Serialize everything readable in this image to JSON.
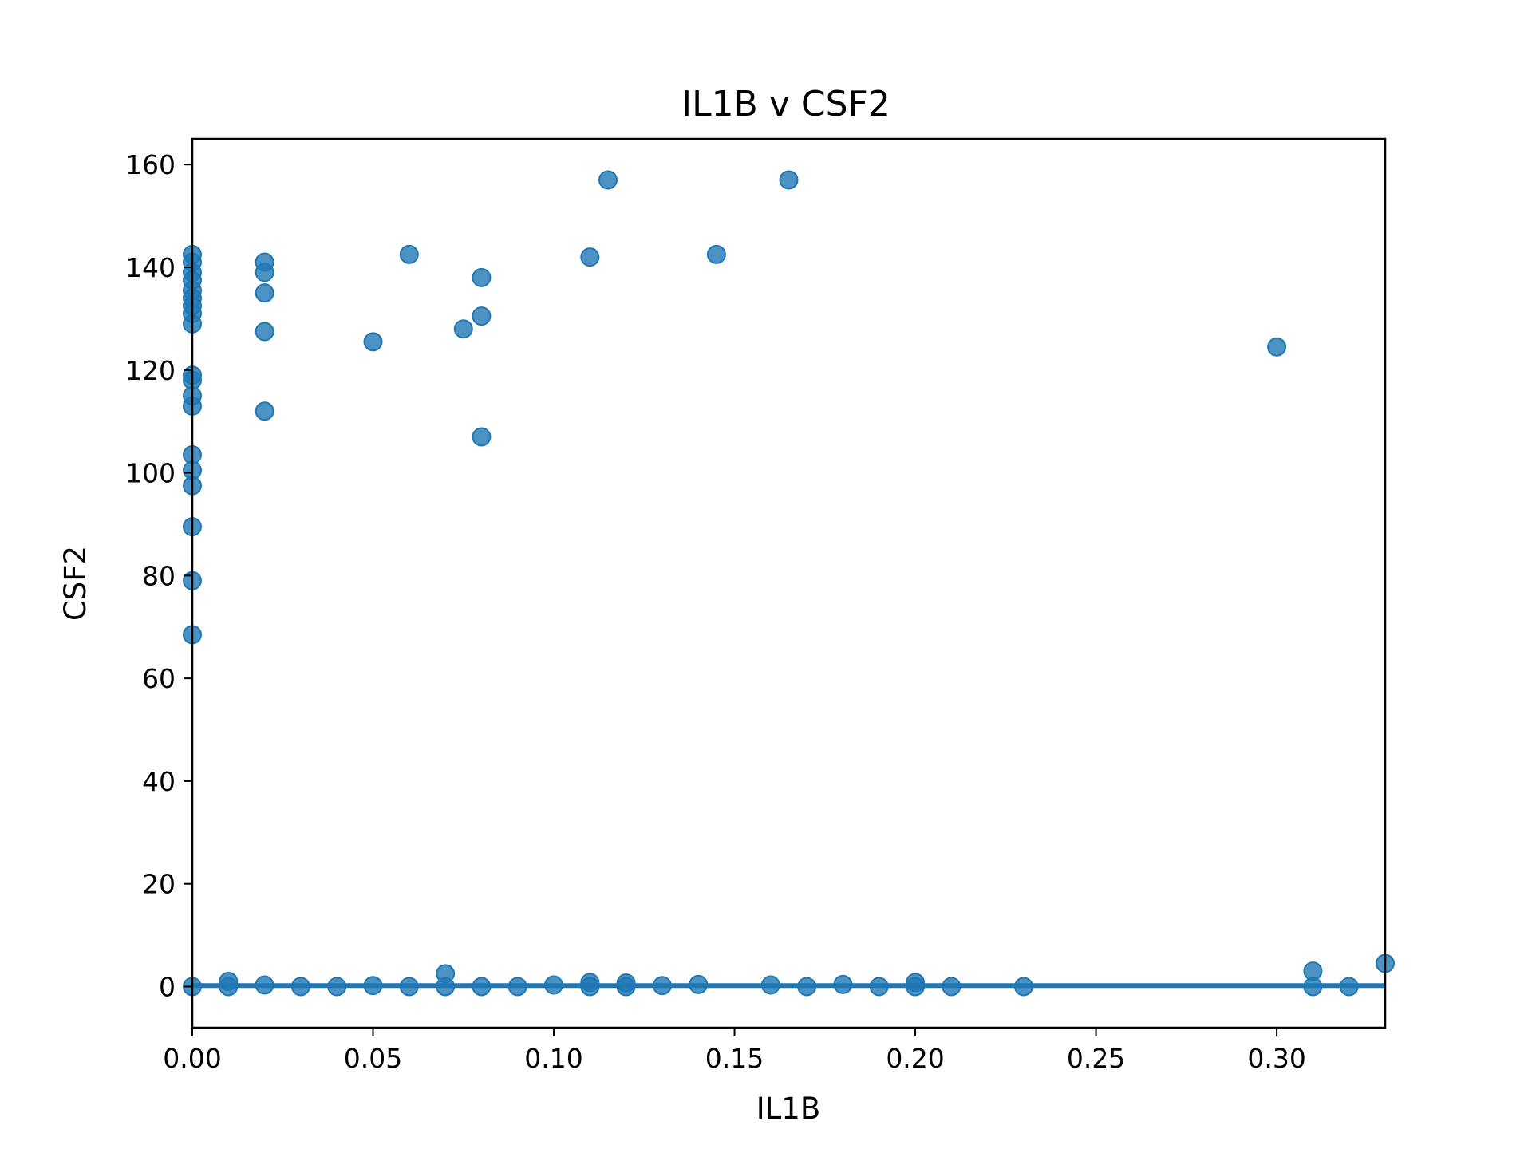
{
  "chart_data": {
    "type": "scatter",
    "title": "IL1B v CSF2",
    "xlabel": "IL1B",
    "ylabel": "CSF2",
    "xlim": [
      0.0,
      0.33
    ],
    "ylim": [
      -8,
      165
    ],
    "xticks": [
      0.0,
      0.05,
      0.1,
      0.15,
      0.2,
      0.25,
      0.3
    ],
    "xtick_labels": [
      "0.00",
      "0.05",
      "0.10",
      "0.15",
      "0.20",
      "0.25",
      "0.30"
    ],
    "yticks": [
      0,
      20,
      40,
      60,
      80,
      100,
      120,
      140,
      160
    ],
    "ytick_labels": [
      "0",
      "20",
      "40",
      "60",
      "80",
      "100",
      "120",
      "140",
      "160"
    ],
    "grid": false,
    "point_color": "#1f77b4",
    "regression_line": {
      "slope": 0,
      "intercept": 0.2,
      "color": "#1f77b4"
    },
    "points": [
      {
        "x": 0.0,
        "y": 142.5
      },
      {
        "x": 0.0,
        "y": 141.0
      },
      {
        "x": 0.0,
        "y": 139.0
      },
      {
        "x": 0.0,
        "y": 137.5
      },
      {
        "x": 0.0,
        "y": 135.5
      },
      {
        "x": 0.0,
        "y": 134.0
      },
      {
        "x": 0.0,
        "y": 132.5
      },
      {
        "x": 0.0,
        "y": 131.0
      },
      {
        "x": 0.0,
        "y": 129.0
      },
      {
        "x": 0.0,
        "y": 119.0
      },
      {
        "x": 0.0,
        "y": 118.0
      },
      {
        "x": 0.0,
        "y": 115.0
      },
      {
        "x": 0.0,
        "y": 113.0
      },
      {
        "x": 0.0,
        "y": 103.5
      },
      {
        "x": 0.0,
        "y": 100.5
      },
      {
        "x": 0.0,
        "y": 97.5
      },
      {
        "x": 0.0,
        "y": 89.5
      },
      {
        "x": 0.0,
        "y": 79.0
      },
      {
        "x": 0.0,
        "y": 68.5
      },
      {
        "x": 0.0,
        "y": 0.0
      },
      {
        "x": 0.01,
        "y": 1.0
      },
      {
        "x": 0.01,
        "y": 0.0
      },
      {
        "x": 0.02,
        "y": 141.0
      },
      {
        "x": 0.02,
        "y": 139.0
      },
      {
        "x": 0.02,
        "y": 135.0
      },
      {
        "x": 0.02,
        "y": 127.5
      },
      {
        "x": 0.02,
        "y": 112.0
      },
      {
        "x": 0.02,
        "y": 0.3
      },
      {
        "x": 0.03,
        "y": 0.0
      },
      {
        "x": 0.04,
        "y": 0.0
      },
      {
        "x": 0.05,
        "y": 125.5
      },
      {
        "x": 0.05,
        "y": 0.2
      },
      {
        "x": 0.06,
        "y": 142.5
      },
      {
        "x": 0.06,
        "y": 0.0
      },
      {
        "x": 0.07,
        "y": 2.5
      },
      {
        "x": 0.07,
        "y": 0.0
      },
      {
        "x": 0.075,
        "y": 128.0
      },
      {
        "x": 0.08,
        "y": 138.0
      },
      {
        "x": 0.08,
        "y": 130.5
      },
      {
        "x": 0.08,
        "y": 107.0
      },
      {
        "x": 0.08,
        "y": 0.0
      },
      {
        "x": 0.09,
        "y": 0.0
      },
      {
        "x": 0.1,
        "y": 0.3
      },
      {
        "x": 0.11,
        "y": 142.0
      },
      {
        "x": 0.11,
        "y": 0.8
      },
      {
        "x": 0.11,
        "y": 0.0
      },
      {
        "x": 0.115,
        "y": 157.0
      },
      {
        "x": 0.12,
        "y": 0.7
      },
      {
        "x": 0.12,
        "y": 0.0
      },
      {
        "x": 0.13,
        "y": 0.2
      },
      {
        "x": 0.14,
        "y": 0.4
      },
      {
        "x": 0.145,
        "y": 142.5
      },
      {
        "x": 0.16,
        "y": 0.3
      },
      {
        "x": 0.165,
        "y": 157.0
      },
      {
        "x": 0.17,
        "y": 0.0
      },
      {
        "x": 0.18,
        "y": 0.4
      },
      {
        "x": 0.19,
        "y": 0.0
      },
      {
        "x": 0.2,
        "y": 0.8
      },
      {
        "x": 0.2,
        "y": 0.0
      },
      {
        "x": 0.21,
        "y": 0.0
      },
      {
        "x": 0.23,
        "y": 0.0
      },
      {
        "x": 0.3,
        "y": 124.5
      },
      {
        "x": 0.31,
        "y": 3.0
      },
      {
        "x": 0.31,
        "y": 0.0
      },
      {
        "x": 0.32,
        "y": 0.0
      },
      {
        "x": 0.33,
        "y": 4.5
      }
    ]
  }
}
